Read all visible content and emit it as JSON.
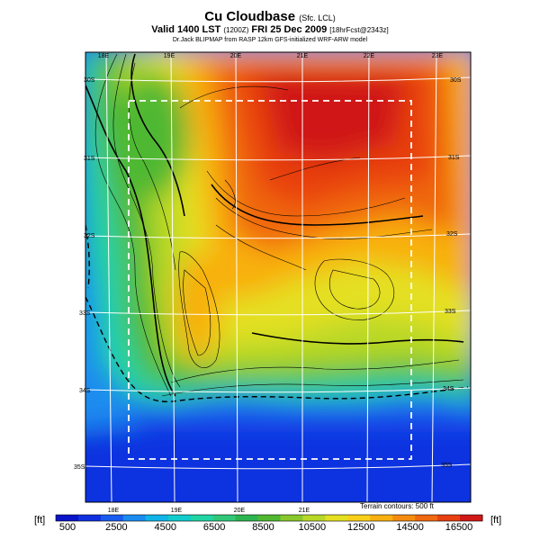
{
  "header": {
    "title": "Cu Cloudbase",
    "title_note": "(Sfc. LCL)",
    "valid_line": "Valid 1400 LST",
    "valid_code": "(1200Z)",
    "valid_date": "FRI 25 Dec 2009",
    "valid_fcst": "[18hrFcst@2343z]",
    "source": "Dr.Jack BLIPMAP from RASP 12km GFS-initialized WRF-ARW model"
  },
  "map": {
    "lon_labels_top": [
      "18E",
      "19E",
      "20E",
      "21E",
      "22E",
      "23E"
    ],
    "lon_labels_bottom": [
      "18E",
      "19E",
      "20E",
      "21E"
    ],
    "lat_labels_left": [
      "30S",
      "31S",
      "32S",
      "33S",
      "34S",
      "35S"
    ],
    "lat_labels_right": [
      "30S",
      "31S",
      "32S",
      "33S",
      "34S",
      "35S"
    ]
  },
  "terrain_note": "Terrain contours: 500 ft",
  "colorbar": {
    "unit": "[ft]",
    "labels": [
      "500",
      "2500",
      "4500",
      "6500",
      "8500",
      "10500",
      "12500",
      "14500",
      "16500"
    ],
    "colors": [
      "#0a14c8",
      "#1030e0",
      "#1a5cf0",
      "#1a8cf0",
      "#10b4e8",
      "#10cccc",
      "#20d4a4",
      "#30c878",
      "#2cb450",
      "#50b830",
      "#88c82c",
      "#b8d828",
      "#e4e020",
      "#f8d018",
      "#f8b010",
      "#f48c10",
      "#f06810",
      "#e84010",
      "#d01818"
    ]
  }
}
